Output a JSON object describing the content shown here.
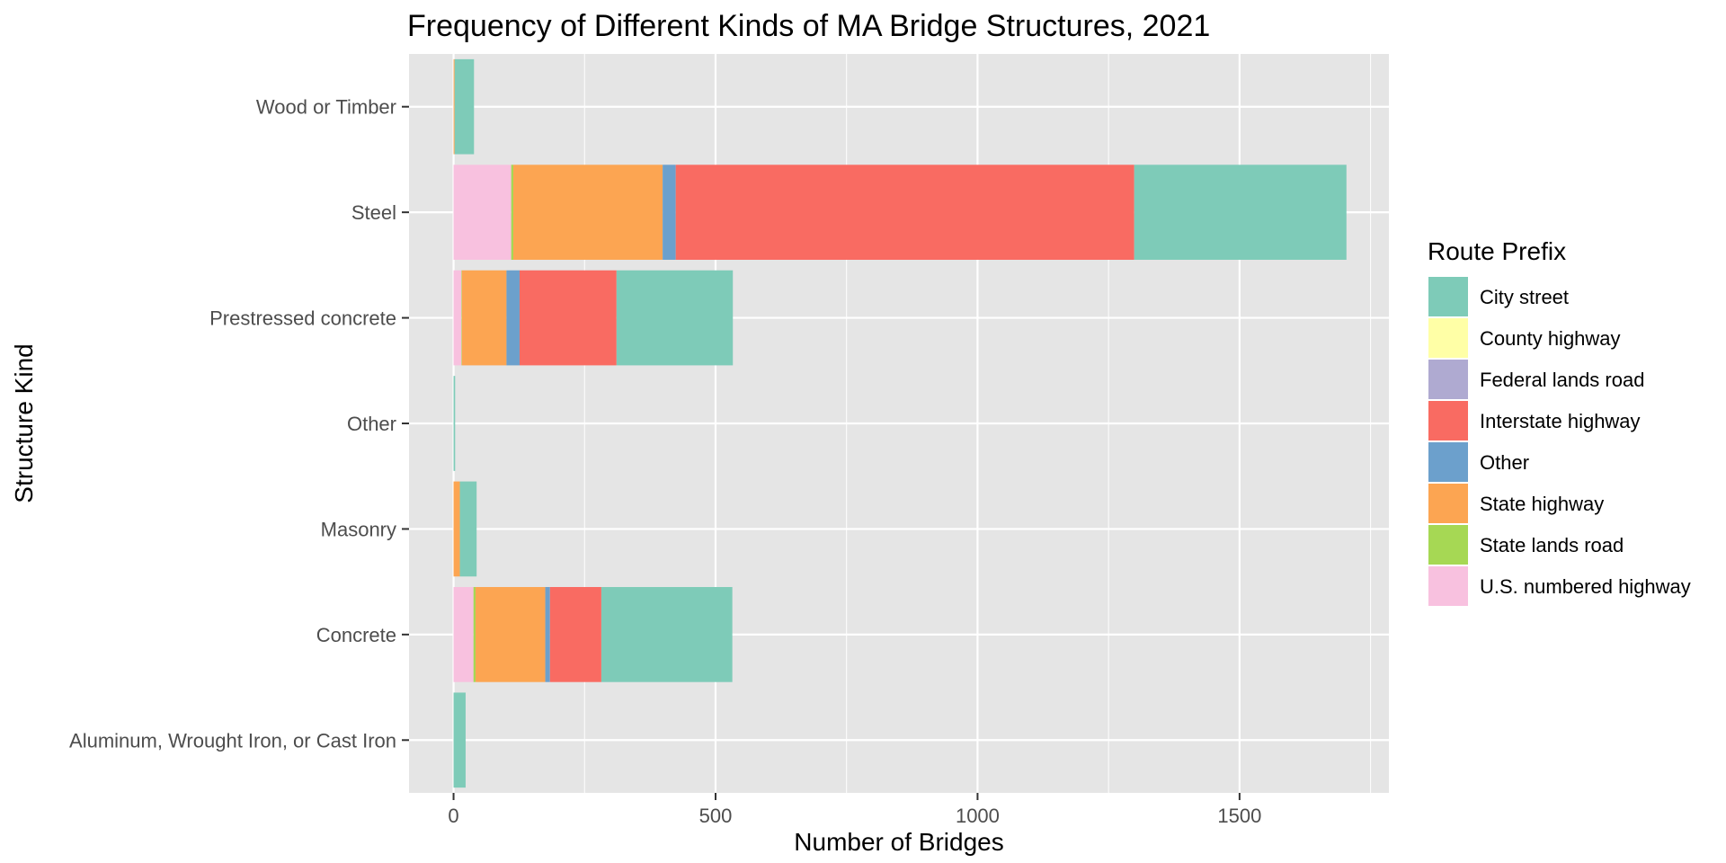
{
  "chart_data": {
    "type": "bar",
    "orientation": "horizontal",
    "stacked": true,
    "title": "Frequency of Different Kinds of MA Bridge Structures, 2021",
    "xlabel": "Number of Bridges",
    "ylabel": "Structure Kind",
    "xlim": [
      -85,
      1785
    ],
    "xticks": [
      0,
      500,
      1000,
      1500
    ],
    "grid": true,
    "legend_position": "right",
    "legend_title": "Route Prefix",
    "categories": [
      "Wood or Timber",
      "Steel",
      "Prestressed concrete",
      "Other",
      "Masonry",
      "Concrete",
      "Aluminum, Wrought Iron, or Cast Iron"
    ],
    "series": [
      {
        "name": "U.S. numbered highway",
        "color": "#F8C1DF",
        "values": [
          0,
          110,
          15,
          0,
          0,
          38,
          0
        ]
      },
      {
        "name": "State lands road",
        "color": "#A6D854",
        "values": [
          0,
          4,
          1,
          0,
          0,
          4,
          0
        ]
      },
      {
        "name": "State highway",
        "color": "#FCA552",
        "values": [
          2,
          285,
          85,
          0,
          12,
          133,
          0
        ]
      },
      {
        "name": "Other",
        "color": "#6CA0CC",
        "values": [
          0,
          25,
          25,
          0,
          0,
          9,
          0
        ]
      },
      {
        "name": "Interstate highway",
        "color": "#F96B62",
        "values": [
          0,
          875,
          185,
          0,
          0,
          98,
          0
        ]
      },
      {
        "name": "Federal lands road",
        "color": "#AFAAD1",
        "values": [
          0,
          0,
          0,
          0,
          0,
          0,
          0
        ]
      },
      {
        "name": "County highway",
        "color": "#FFFFA6",
        "values": [
          0,
          0,
          0,
          0,
          0,
          0,
          0
        ]
      },
      {
        "name": "City street",
        "color": "#7ECBB8",
        "values": [
          37,
          405,
          222,
          3,
          32,
          250,
          23
        ]
      }
    ],
    "legend_order": [
      "City street",
      "County highway",
      "Federal lands road",
      "Interstate highway",
      "Other",
      "State highway",
      "State lands road",
      "U.S. numbered highway"
    ]
  },
  "colors": {
    "panel_background": "#E5E5E5",
    "gridline": "#FFFFFF",
    "text": "#000000",
    "tick_text": "#4D4D4D",
    "tick_mark": "#333333"
  }
}
